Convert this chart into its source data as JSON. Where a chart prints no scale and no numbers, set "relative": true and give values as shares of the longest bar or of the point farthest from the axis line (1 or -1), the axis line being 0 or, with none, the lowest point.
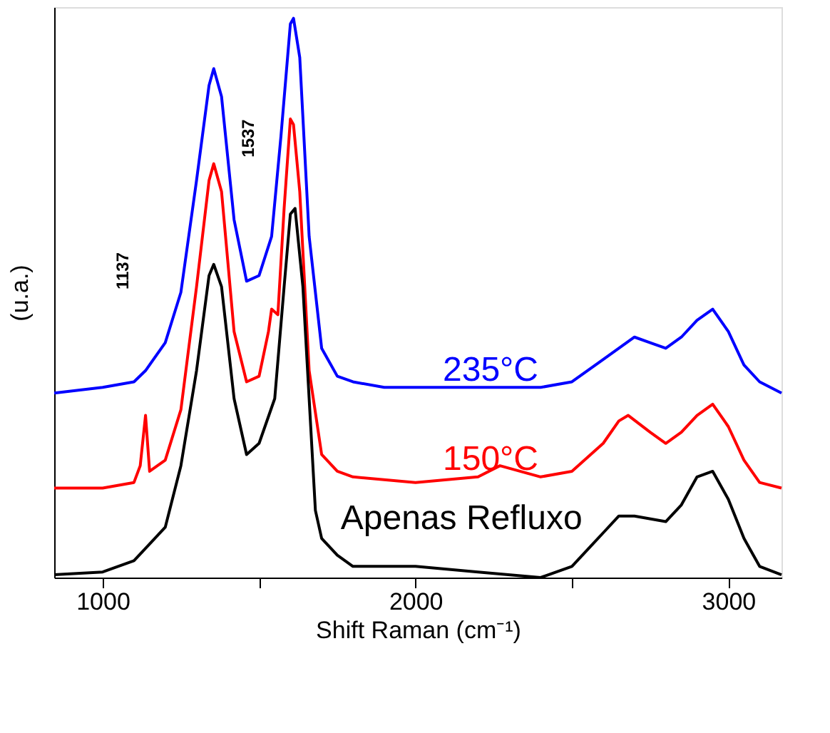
{
  "chart_data": {
    "type": "line",
    "relative": true,
    "xlabel": "Shift Raman (cm⁻¹)",
    "ylabel": "(u.a.)",
    "xlim": [
      845,
      3170
    ],
    "xticks": [
      1000,
      {
        "value": 1500,
        "label": null
      },
      2000,
      {
        "value": 2500,
        "label": null
      },
      3000
    ],
    "tick_labels": "x",
    "grid": false,
    "marker": "none",
    "line_style": "solid",
    "x": [
      845,
      1000,
      1100,
      1137,
      1200,
      1250,
      1300,
      1340,
      1355,
      1380,
      1420,
      1460,
      1500,
      1540,
      1570,
      1600,
      1610,
      1630,
      1660,
      1700,
      1750,
      1800,
      1900,
      2000,
      2200,
      2400,
      2500,
      2600,
      2650,
      2700,
      2750,
      2800,
      2850,
      2900,
      2950,
      3000,
      3050,
      3100,
      3170
    ],
    "series": [
      {
        "name": "235°C",
        "color": "#0000ff",
        "values": [
          0.33,
          0.34,
          0.35,
          0.37,
          0.42,
          0.51,
          0.71,
          0.88,
          0.91,
          0.86,
          0.64,
          0.53,
          0.54,
          0.61,
          0.79,
          0.99,
          1.0,
          0.93,
          0.61,
          0.41,
          0.36,
          0.35,
          0.34,
          0.34,
          0.34,
          0.34,
          0.35,
          0.39,
          0.41,
          0.43,
          0.42,
          0.41,
          0.43,
          0.46,
          0.48,
          0.44,
          0.38,
          0.35,
          0.33
        ]
      },
      {
        "name": "150°C",
        "color": "#ff0000",
        "x": [
          845,
          1000,
          1100,
          1120,
          1137,
          1150,
          1200,
          1250,
          1300,
          1340,
          1355,
          1380,
          1420,
          1460,
          1500,
          1530,
          1540,
          1560,
          1580,
          1600,
          1610,
          1630,
          1660,
          1700,
          1750,
          1800,
          2000,
          2200,
          2270,
          2400,
          2500,
          2600,
          2650,
          2680,
          2750,
          2800,
          2850,
          2900,
          2950,
          3000,
          3050,
          3100,
          3170
        ],
        "values": [
          0.16,
          0.16,
          0.17,
          0.2,
          0.29,
          0.19,
          0.21,
          0.3,
          0.52,
          0.71,
          0.74,
          0.69,
          0.44,
          0.35,
          0.36,
          0.44,
          0.48,
          0.47,
          0.66,
          0.82,
          0.81,
          0.69,
          0.37,
          0.22,
          0.19,
          0.18,
          0.17,
          0.18,
          0.2,
          0.18,
          0.19,
          0.24,
          0.28,
          0.29,
          0.26,
          0.24,
          0.26,
          0.29,
          0.31,
          0.27,
          0.21,
          0.17,
          0.16
        ]
      },
      {
        "name": "Apenas Refluxo",
        "color": "#000000",
        "x": [
          845,
          1000,
          1100,
          1200,
          1250,
          1300,
          1340,
          1355,
          1380,
          1420,
          1460,
          1500,
          1550,
          1580,
          1600,
          1615,
          1640,
          1680,
          1700,
          1750,
          1800,
          2000,
          2200,
          2400,
          2500,
          2600,
          2650,
          2700,
          2800,
          2850,
          2900,
          2950,
          3000,
          3050,
          3100,
          3170
        ],
        "values": [
          0.005,
          0.01,
          0.03,
          0.09,
          0.2,
          0.37,
          0.54,
          0.56,
          0.52,
          0.32,
          0.22,
          0.24,
          0.32,
          0.52,
          0.65,
          0.66,
          0.52,
          0.12,
          0.07,
          0.04,
          0.02,
          0.02,
          0.01,
          0,
          0.02,
          0.08,
          0.11,
          0.11,
          0.1,
          0.13,
          0.18,
          0.19,
          0.14,
          0.07,
          0.02,
          0.005
        ]
      }
    ],
    "annotations": [
      "1137",
      "1537"
    ]
  }
}
